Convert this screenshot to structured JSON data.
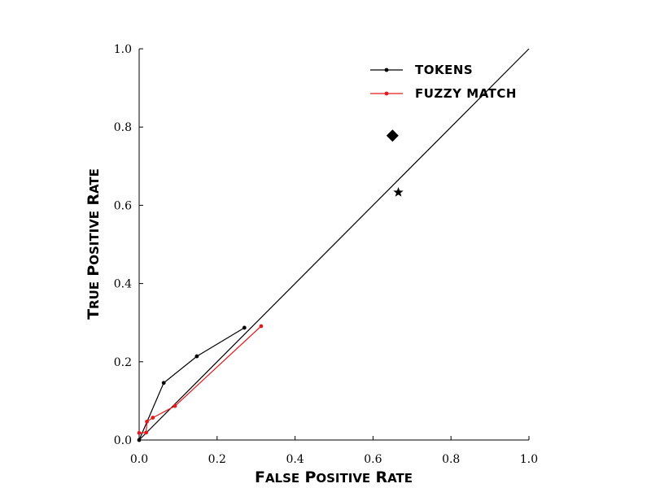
{
  "chart_data": {
    "type": "line",
    "xlabel": "False Positive Rate",
    "ylabel": "True Positive Rate",
    "xlim": [
      0.0,
      1.0
    ],
    "ylim": [
      0.0,
      1.0
    ],
    "xticks": [
      "0.0",
      "0.2",
      "0.4",
      "0.6",
      "0.8",
      "1.0"
    ],
    "yticks": [
      "0.0",
      "0.2",
      "0.4",
      "0.6",
      "0.8",
      "1.0"
    ],
    "grid": false,
    "legend_position": "top-right",
    "series": [
      {
        "name": "TOKENS",
        "color": "#000000",
        "marker": "dot",
        "points": [
          [
            0.0,
            0.0
          ],
          [
            0.063,
            0.146
          ],
          [
            0.148,
            0.214
          ],
          [
            0.27,
            0.287
          ]
        ]
      },
      {
        "name": "FUZZY MATCH",
        "color": "#e41a1c",
        "marker": "dot",
        "points": [
          [
            0.0,
            0.018
          ],
          [
            0.018,
            0.019
          ],
          [
            0.02,
            0.047
          ],
          [
            0.035,
            0.057
          ],
          [
            0.092,
            0.087
          ],
          [
            0.313,
            0.291
          ]
        ]
      }
    ],
    "reference_line": {
      "color": "#000000",
      "points": [
        [
          0.0,
          0.0
        ],
        [
          1.0,
          1.0
        ]
      ]
    },
    "markers": [
      {
        "shape": "diamond",
        "color": "#000000",
        "x": 0.65,
        "y": 0.778
      },
      {
        "shape": "star",
        "color": "#000000",
        "x": 0.665,
        "y": 0.633
      }
    ]
  }
}
